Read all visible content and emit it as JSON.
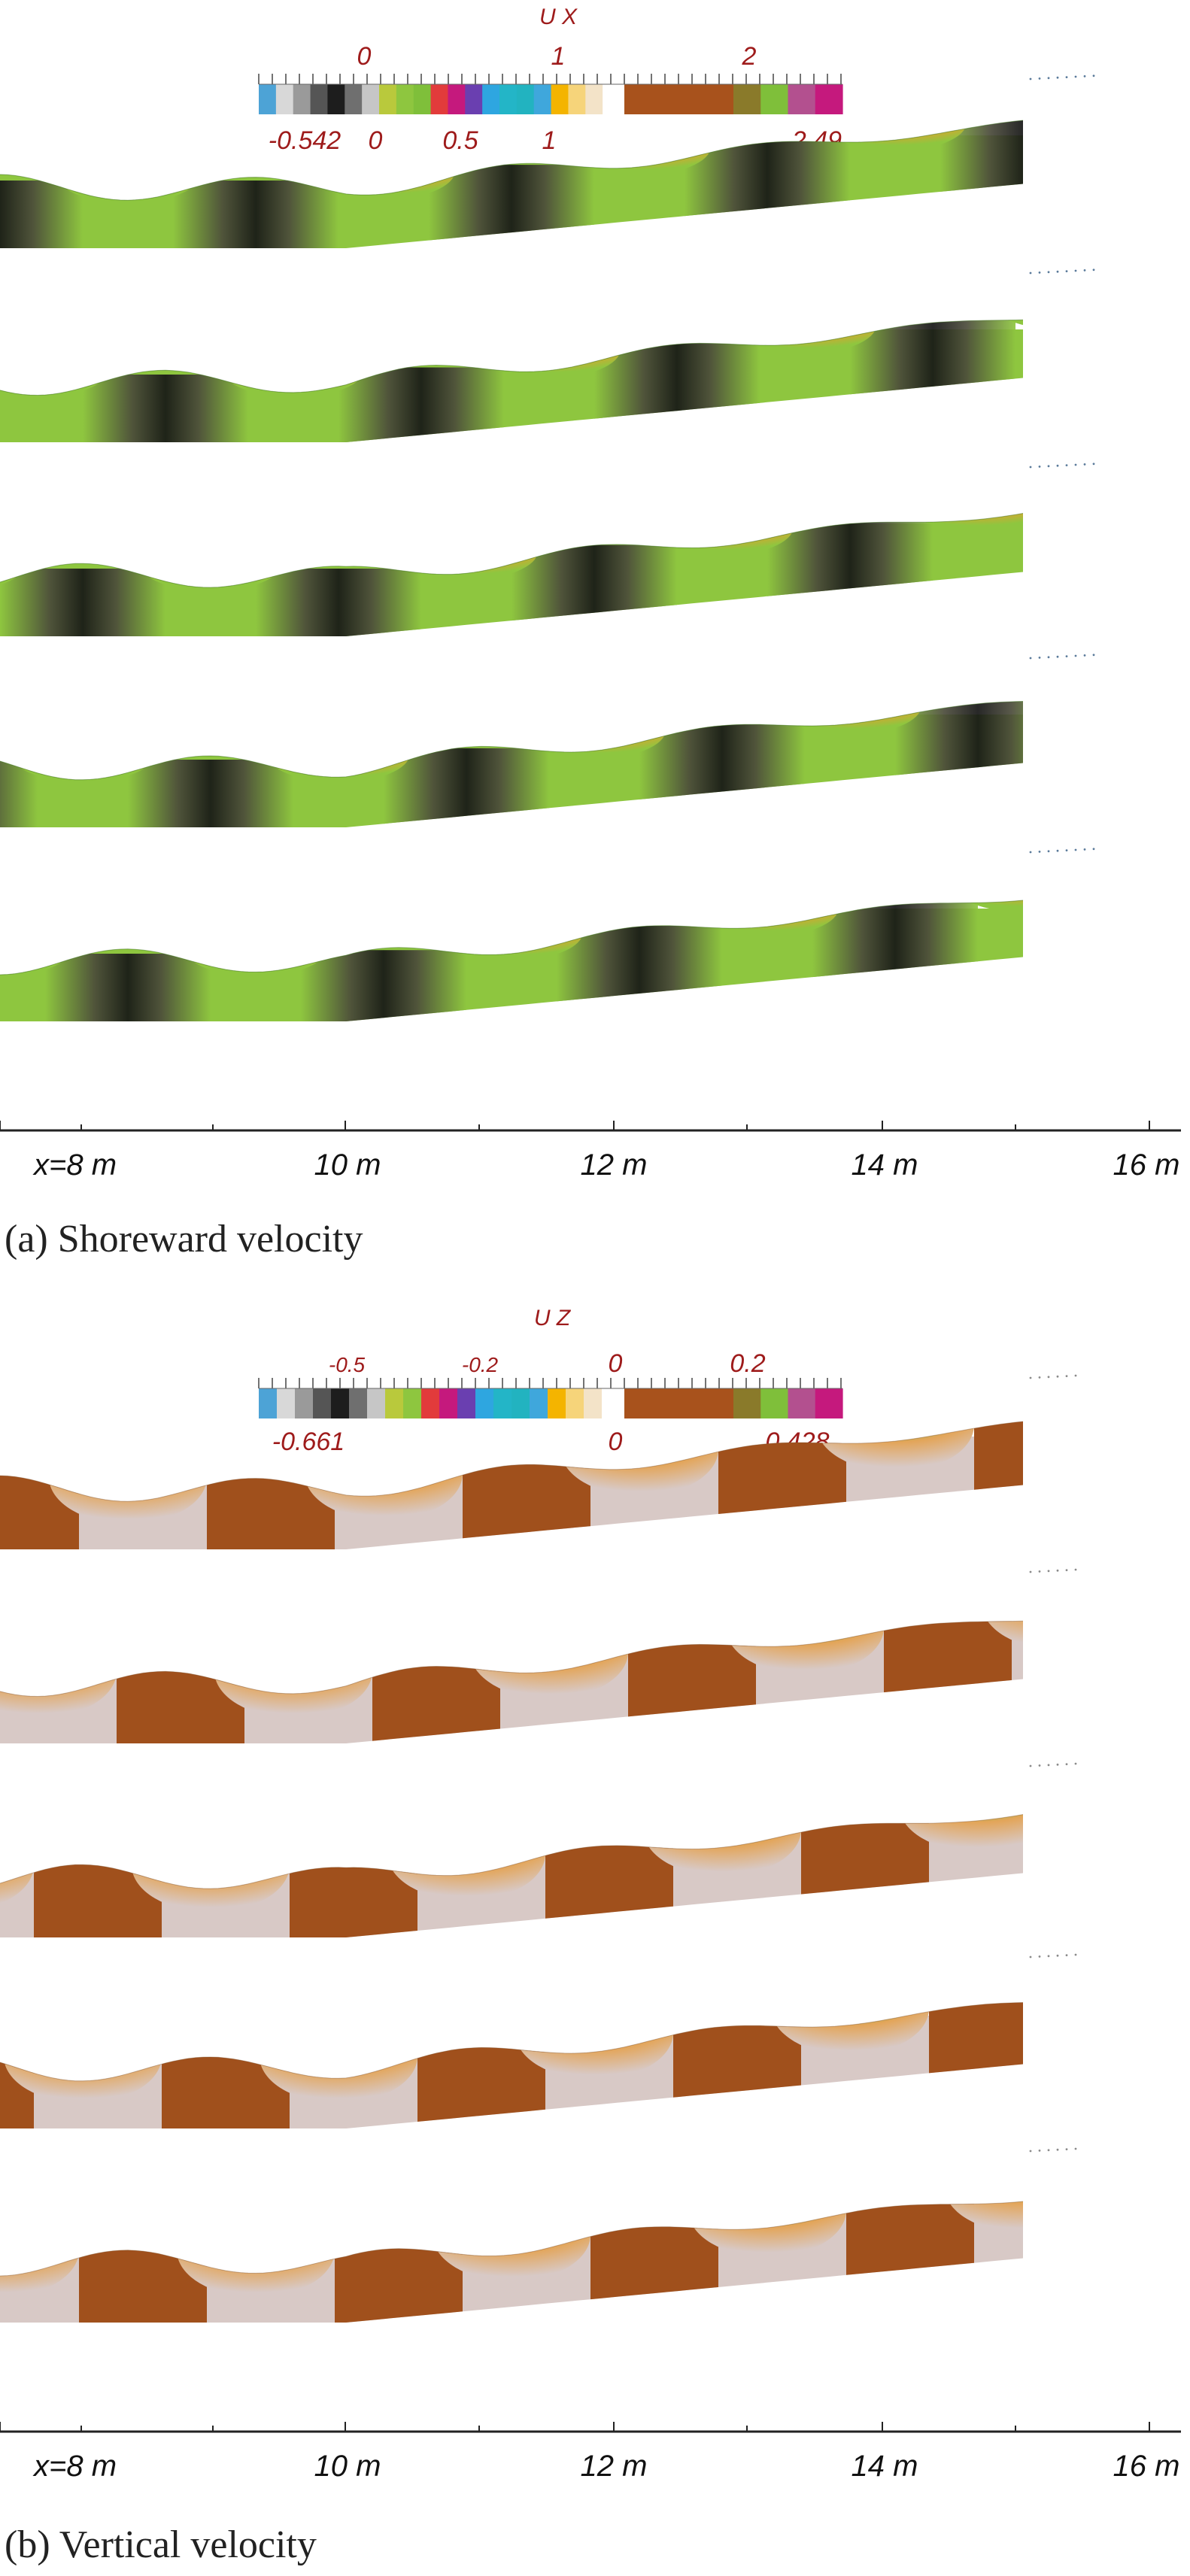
{
  "figure": {
    "panel_a": {
      "colorbar": {
        "title": "U X",
        "top_ticks": [
          "0",
          "1",
          "2"
        ],
        "bottom_ticks": [
          "-0.542",
          "0",
          "0.5",
          "1",
          "2.49"
        ],
        "colors": [
          "#4da3d6",
          "#d8d8d8",
          "#9a9a9a",
          "#555555",
          "#1d1d1d",
          "#6f6f6f",
          "#c6c6c6",
          "#b9c93c",
          "#8ec63f",
          "#7fbf3a",
          "#e23b3b",
          "#c5197d",
          "#6a3fb0",
          "#2ea6e0",
          "#23b5c7",
          "#22b3c0",
          "#3fa7dc",
          "#f4b400",
          "#f6d47a",
          "#f3e3c8",
          "#ffffff"
        ],
        "colors_right": [
          "#a8521c",
          "#a8521c",
          "#a8521c",
          "#a8521c",
          "#8a7a2a",
          "#7fbf3a",
          "#b3508f",
          "#c5197d"
        ]
      },
      "caption": "(a) Shoreward velocity",
      "snapshots": 5
    },
    "panel_b": {
      "colorbar": {
        "title": "U Z",
        "top_ticks": [
          "-0.5",
          "-0.2",
          "0",
          "0.2"
        ],
        "bottom_ticks": [
          "-0.661",
          "0",
          "0.428"
        ],
        "colors": [
          "#4da3d6",
          "#d8d8d8",
          "#9a9a9a",
          "#555555",
          "#1d1d1d",
          "#6f6f6f",
          "#c6c6c6",
          "#b9c93c",
          "#8ec63f",
          "#e23b3b",
          "#c5197d",
          "#6a3fb0",
          "#2ea6e0",
          "#23b5c7",
          "#22b3c0",
          "#3fa7dc",
          "#f4b400",
          "#f6d47a",
          "#f3e3c8",
          "#ffffff"
        ],
        "colors_right": [
          "#a8521c",
          "#a8521c",
          "#a8521c",
          "#a8521c",
          "#8a7a2a",
          "#7fbf3a",
          "#b3508f",
          "#c5197d"
        ]
      },
      "caption": "(b) Vertical velocity",
      "snapshots": 5
    },
    "x_axis": {
      "ticks": [
        "x=8 m",
        "10 m",
        "12 m",
        "14 m",
        "16 m"
      ]
    },
    "colors": {
      "label_red": "#9e1b1b",
      "ux_fill": "#8ec63f",
      "ux_dark": "#1c1c1c",
      "uz_fill": "#d8c9c6",
      "uz_brown": "#a0501c",
      "uz_orange": "#e3a55a",
      "uz_teal": "#27b3b0",
      "uz_green": "#7fbf3a"
    }
  }
}
